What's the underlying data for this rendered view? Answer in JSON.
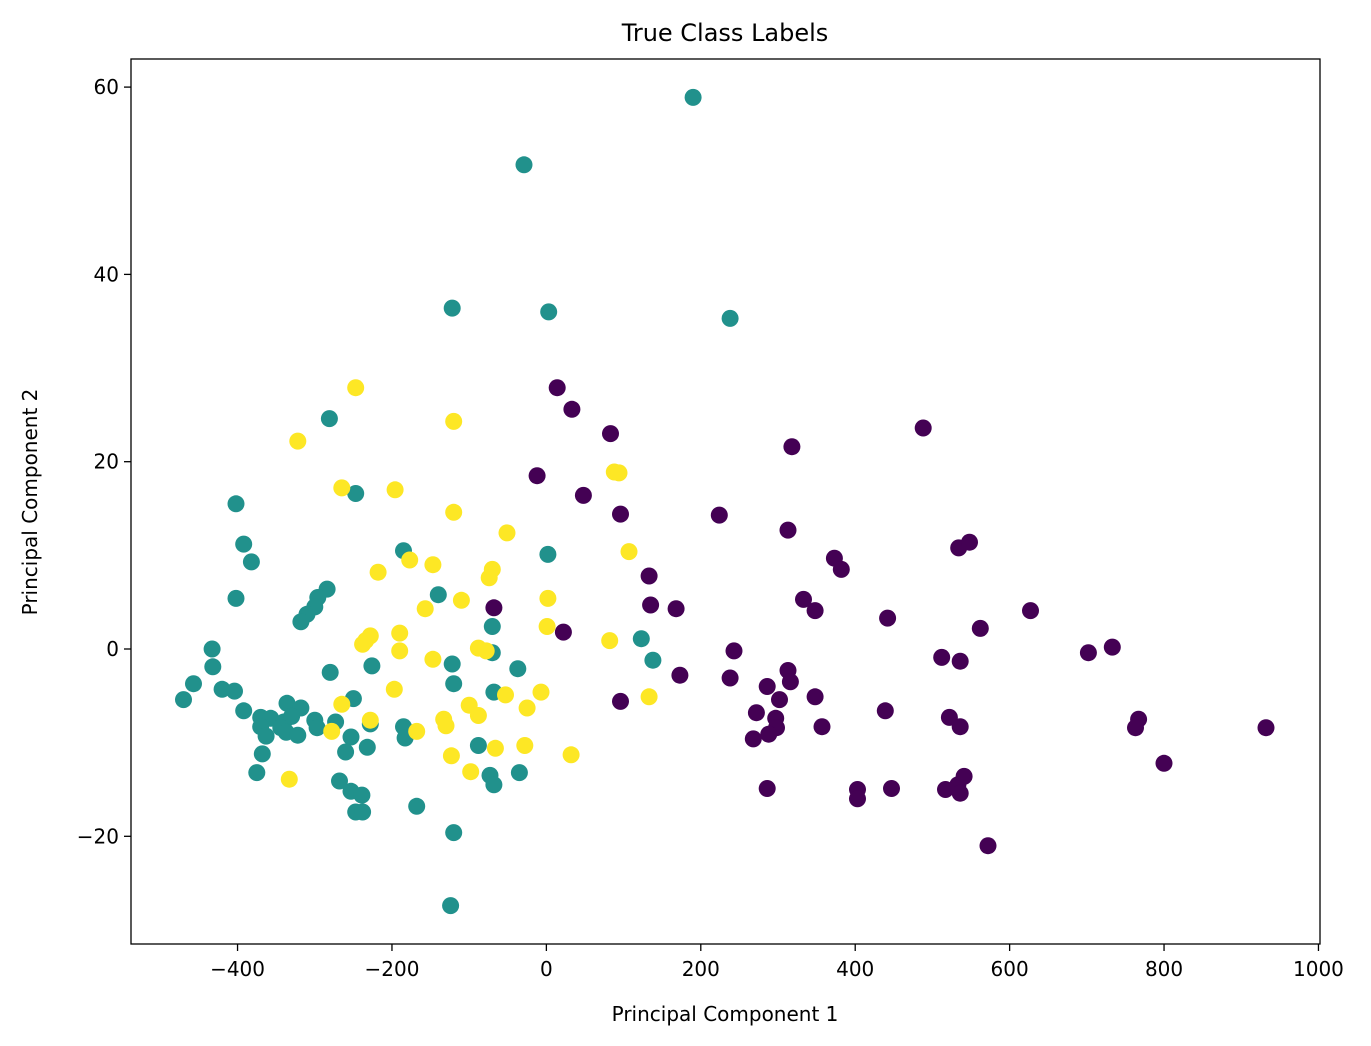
{
  "chart_data": {
    "type": "scatter",
    "title": "True Class Labels",
    "xlabel": "Principal Component 1",
    "ylabel": "Principal Component 2",
    "xlim": [
      -538,
      1002
    ],
    "ylim": [
      -31.5,
      63
    ],
    "xticks": [
      {
        "value": -400,
        "label": "−400"
      },
      {
        "value": -200,
        "label": "−200"
      },
      {
        "value": 0,
        "label": "0"
      },
      {
        "value": 200,
        "label": "200"
      },
      {
        "value": 400,
        "label": "400"
      },
      {
        "value": 600,
        "label": "600"
      },
      {
        "value": 800,
        "label": "800"
      },
      {
        "value": 1000,
        "label": "1000"
      }
    ],
    "yticks": [
      {
        "value": -20,
        "label": "−20"
      },
      {
        "value": 0,
        "label": "0"
      },
      {
        "value": 20,
        "label": "20"
      },
      {
        "value": 40,
        "label": "40"
      },
      {
        "value": 60,
        "label": "60"
      }
    ],
    "grid": false,
    "series": [
      {
        "color": "#440154",
        "points": [
          [
            14,
            27.9
          ],
          [
            33,
            25.6
          ],
          [
            83,
            23
          ],
          [
            318,
            21.6
          ],
          [
            488,
            23.6
          ],
          [
            -12,
            18.5
          ],
          [
            48,
            16.4
          ],
          [
            96,
            14.4
          ],
          [
            224,
            14.3
          ],
          [
            313,
            12.7
          ],
          [
            534,
            10.8
          ],
          [
            548,
            11.4
          ],
          [
            373,
            9.7
          ],
          [
            382,
            8.5
          ],
          [
            133,
            7.8
          ],
          [
            -68,
            4.4
          ],
          [
            135,
            4.7
          ],
          [
            168,
            4.3
          ],
          [
            333,
            5.3
          ],
          [
            348,
            4.1
          ],
          [
            442,
            3.3
          ],
          [
            627,
            4.1
          ],
          [
            562,
            2.2
          ],
          [
            22,
            1.8
          ],
          [
            243,
            -0.2
          ],
          [
            512,
            -0.9
          ],
          [
            536,
            -1.3
          ],
          [
            702,
            -0.4
          ],
          [
            733,
            0.2
          ],
          [
            173,
            -2.8
          ],
          [
            238,
            -3.1
          ],
          [
            313,
            -2.3
          ],
          [
            316,
            -3.5
          ],
          [
            286,
            -4
          ],
          [
            96,
            -5.6
          ],
          [
            302,
            -5.4
          ],
          [
            348,
            -5.1
          ],
          [
            272,
            -6.8
          ],
          [
            297,
            -7.4
          ],
          [
            439,
            -6.6
          ],
          [
            522,
            -7.3
          ],
          [
            767,
            -7.5
          ],
          [
            763,
            -8.4
          ],
          [
            932,
            -8.4
          ],
          [
            298,
            -8.4
          ],
          [
            357,
            -8.3
          ],
          [
            536,
            -8.3
          ],
          [
            268,
            -9.6
          ],
          [
            288,
            -9.1
          ],
          [
            800,
            -12.2
          ],
          [
            286,
            -14.9
          ],
          [
            403,
            -15
          ],
          [
            403,
            -16
          ],
          [
            447,
            -14.9
          ],
          [
            517,
            -15
          ],
          [
            533,
            -14.5
          ],
          [
            541,
            -13.6
          ],
          [
            536,
            -15.4
          ],
          [
            572,
            -21
          ]
        ]
      },
      {
        "color": "#21918c",
        "points": [
          [
            190,
            58.9
          ],
          [
            -29,
            51.7
          ],
          [
            -122,
            36.4
          ],
          [
            3,
            36
          ],
          [
            238,
            35.3
          ],
          [
            -281,
            24.6
          ],
          [
            -247,
            16.6
          ],
          [
            -402,
            15.5
          ],
          [
            -392,
            11.2
          ],
          [
            -382,
            9.3
          ],
          [
            -185,
            10.5
          ],
          [
            2,
            10.1
          ],
          [
            -284,
            6.4
          ],
          [
            -296,
            5.5
          ],
          [
            -300,
            4.5
          ],
          [
            -310,
            3.7
          ],
          [
            -318,
            2.9
          ],
          [
            -402,
            5.4
          ],
          [
            -140,
            5.8
          ],
          [
            -70,
            2.4
          ],
          [
            123,
            1.1
          ],
          [
            138,
            -1.2
          ],
          [
            -433,
            0
          ],
          [
            -432,
            -1.9
          ],
          [
            -70,
            -0.4
          ],
          [
            -122,
            -1.6
          ],
          [
            -226,
            -1.8
          ],
          [
            -280,
            -2.5
          ],
          [
            -120,
            -3.7
          ],
          [
            -37,
            -2.1
          ],
          [
            -457,
            -3.7
          ],
          [
            -420,
            -4.3
          ],
          [
            -404,
            -4.5
          ],
          [
            -470,
            -5.4
          ],
          [
            -68,
            -4.6
          ],
          [
            -392,
            -6.6
          ],
          [
            -370,
            -7.3
          ],
          [
            -357,
            -7.4
          ],
          [
            -340,
            -7.8
          ],
          [
            -336,
            -5.8
          ],
          [
            -318,
            -6.3
          ],
          [
            -330,
            -7.2
          ],
          [
            -300,
            -7.6
          ],
          [
            -250,
            -5.3
          ],
          [
            -273,
            -7.8
          ],
          [
            -228,
            -8
          ],
          [
            -370,
            -8.3
          ],
          [
            -363,
            -9.3
          ],
          [
            -344,
            -8.4
          ],
          [
            -337,
            -8.9
          ],
          [
            -322,
            -9.2
          ],
          [
            -297,
            -8.4
          ],
          [
            -253,
            -9.4
          ],
          [
            -232,
            -10.5
          ],
          [
            -260,
            -11
          ],
          [
            -185,
            -8.3
          ],
          [
            -183,
            -9.5
          ],
          [
            -88,
            -10.3
          ],
          [
            -368,
            -11.2
          ],
          [
            -375,
            -13.2
          ],
          [
            -268,
            -14.1
          ],
          [
            -253,
            -15.2
          ],
          [
            -239,
            -15.6
          ],
          [
            -247,
            -17.4
          ],
          [
            -238,
            -17.4
          ],
          [
            -168,
            -16.8
          ],
          [
            -73,
            -13.5
          ],
          [
            -68,
            -14.5
          ],
          [
            -35,
            -13.2
          ],
          [
            -120,
            -19.6
          ],
          [
            -124,
            -27.4
          ]
        ]
      },
      {
        "color": "#fde725",
        "points": [
          [
            -247,
            27.9
          ],
          [
            -120,
            24.3
          ],
          [
            -322,
            22.2
          ],
          [
            -265,
            17.2
          ],
          [
            -196,
            17
          ],
          [
            -120,
            14.6
          ],
          [
            88,
            18.9
          ],
          [
            94,
            18.8
          ],
          [
            -51,
            12.4
          ],
          [
            107,
            10.4
          ],
          [
            -177,
            9.5
          ],
          [
            -147,
            9
          ],
          [
            -218,
            8.2
          ],
          [
            -70,
            8.5
          ],
          [
            -74,
            7.6
          ],
          [
            -110,
            5.2
          ],
          [
            -157,
            4.3
          ],
          [
            2,
            5.4
          ],
          [
            1,
            2.4
          ],
          [
            -190,
            1.7
          ],
          [
            -228,
            1.4
          ],
          [
            -234,
            0.9
          ],
          [
            -238,
            0.5
          ],
          [
            -190,
            -0.2
          ],
          [
            82,
            0.9
          ],
          [
            -88,
            0.1
          ],
          [
            -78,
            -0.2
          ],
          [
            -147,
            -1.1
          ],
          [
            -197,
            -4.3
          ],
          [
            -7,
            -4.6
          ],
          [
            -53,
            -4.9
          ],
          [
            133,
            -5.1
          ],
          [
            -265,
            -5.9
          ],
          [
            -100,
            -6
          ],
          [
            -25,
            -6.3
          ],
          [
            -88,
            -7.1
          ],
          [
            -133,
            -7.5
          ],
          [
            -228,
            -7.6
          ],
          [
            -130,
            -8.2
          ],
          [
            -168,
            -8.8
          ],
          [
            -278,
            -8.8
          ],
          [
            -66,
            -10.6
          ],
          [
            -28,
            -10.3
          ],
          [
            32,
            -11.3
          ],
          [
            -123,
            -11.4
          ],
          [
            -98,
            -13.1
          ],
          [
            -333,
            -13.9
          ]
        ]
      }
    ]
  }
}
